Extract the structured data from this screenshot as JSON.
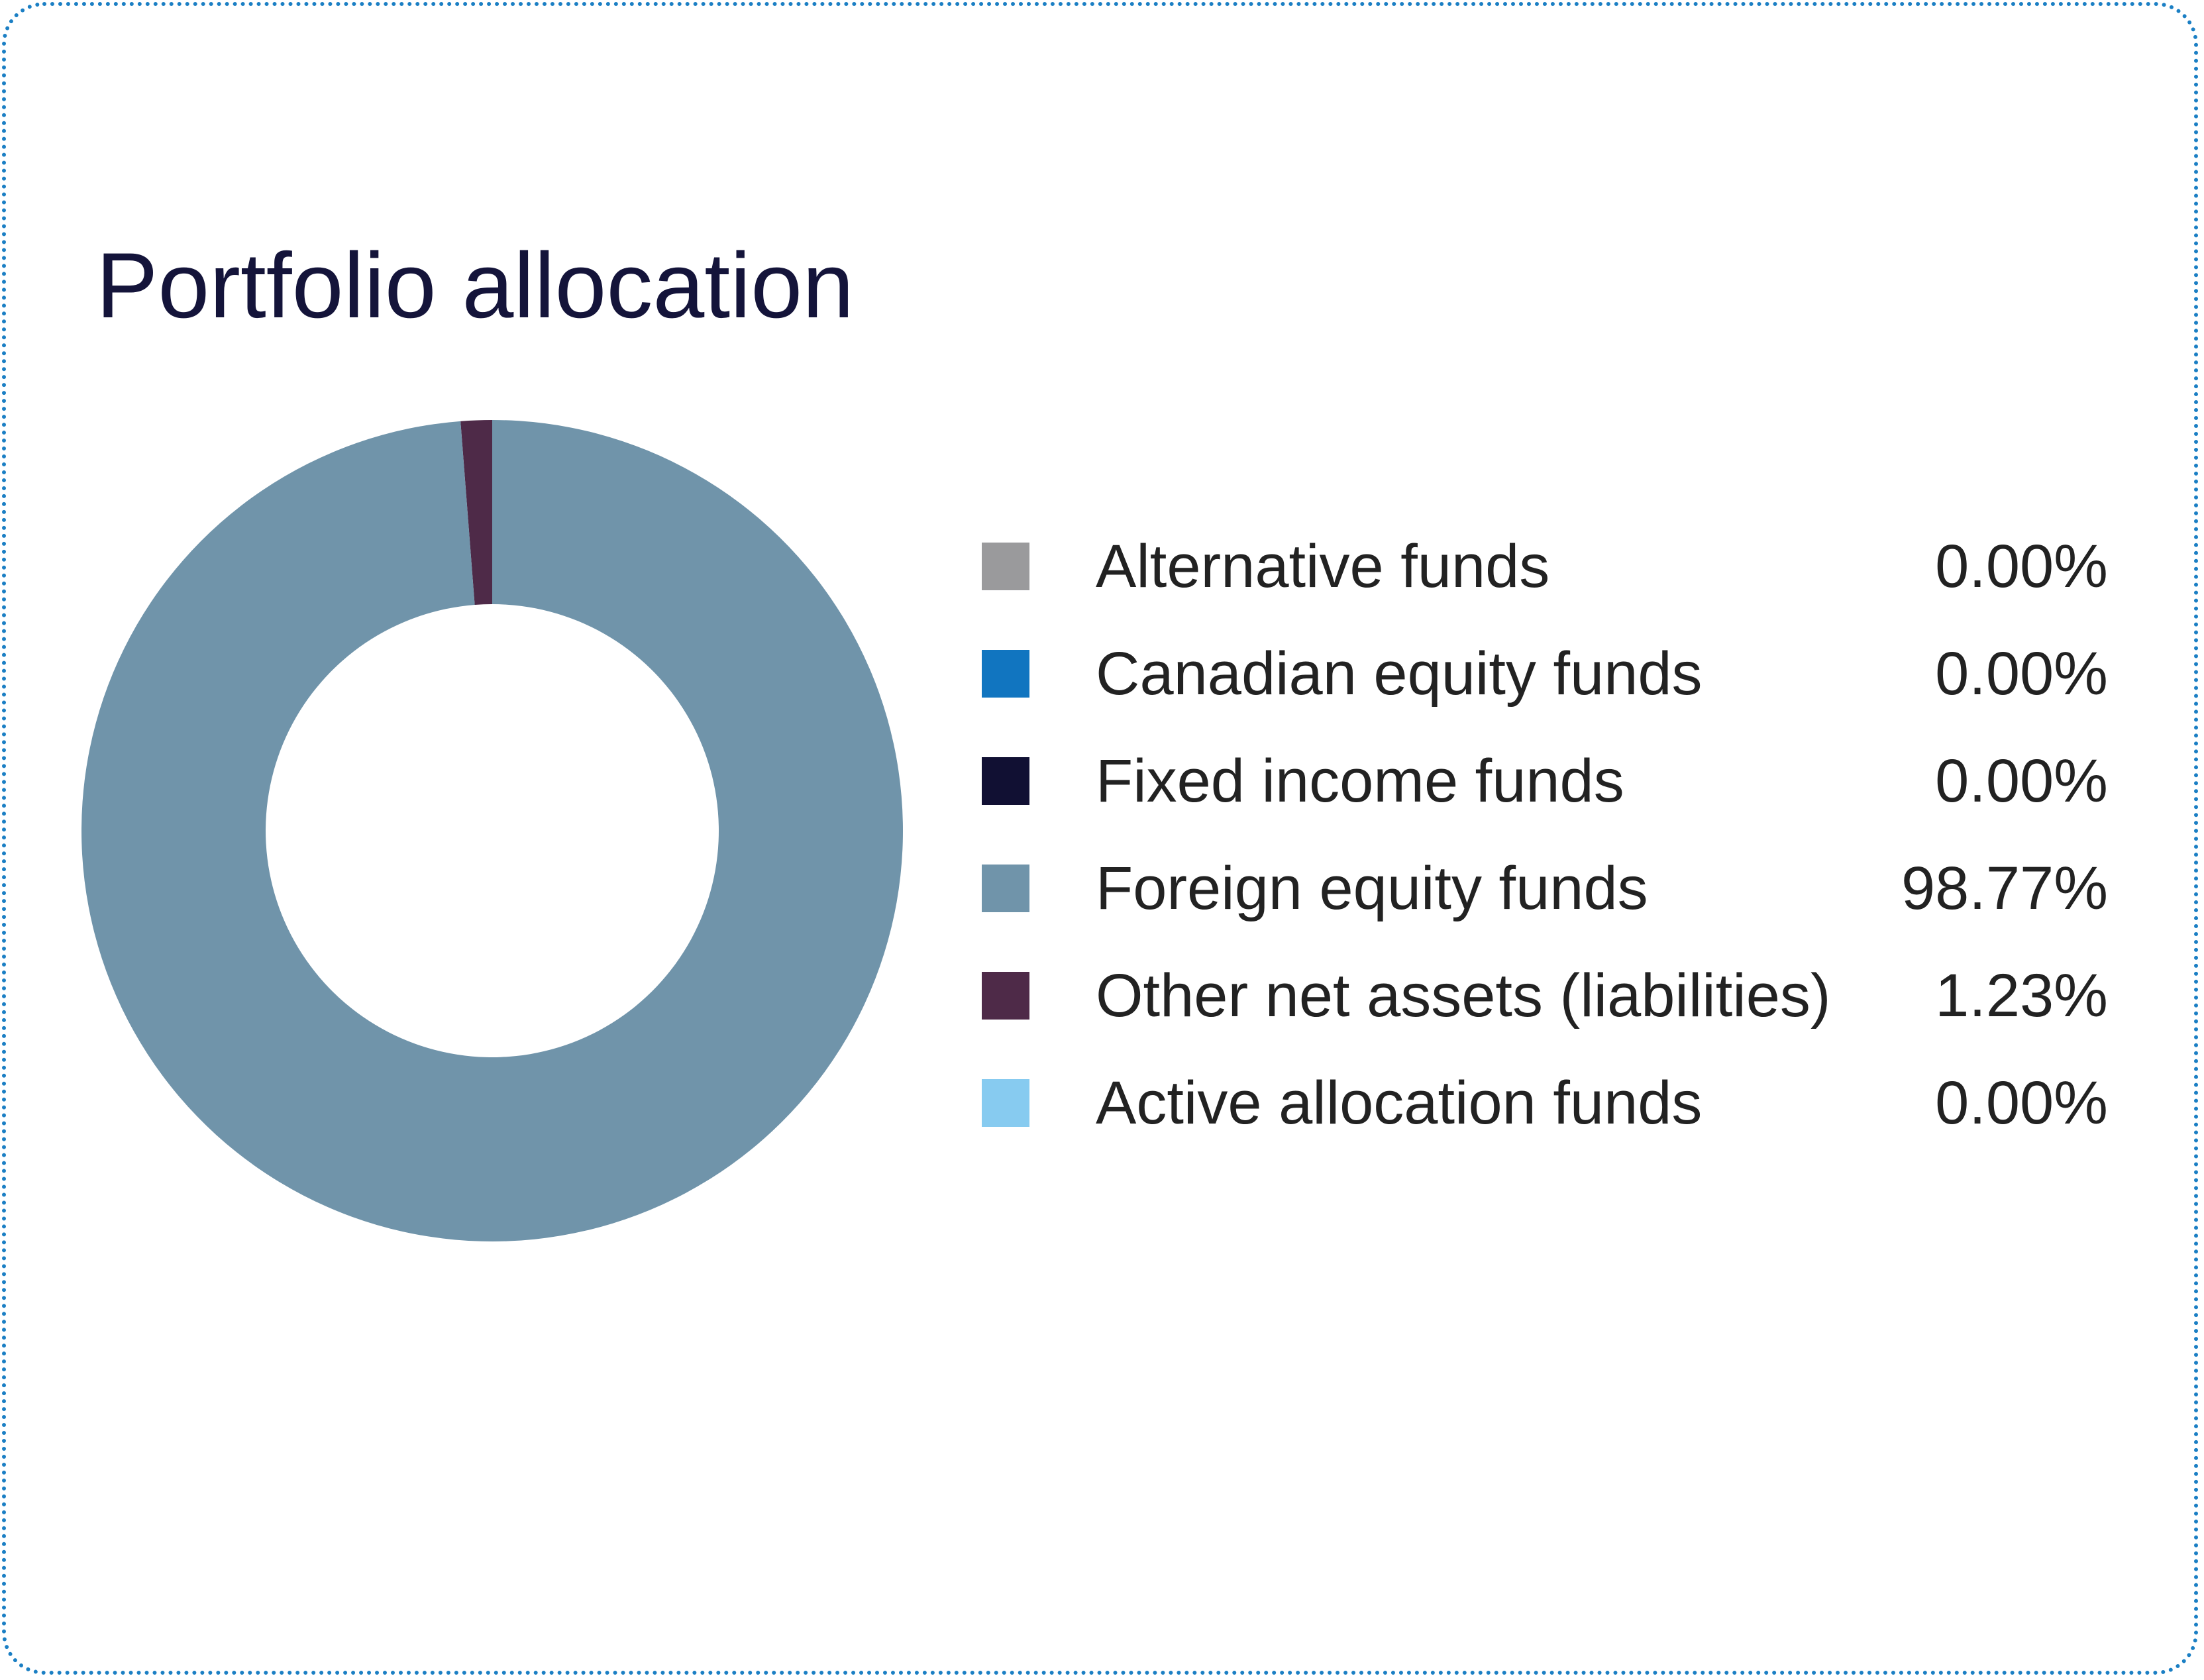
{
  "chart_data": {
    "type": "pie",
    "title": "Portfolio allocation",
    "categories": [
      "Alternative funds",
      "Canadian equity funds",
      "Fixed income funds",
      "Foreign equity funds",
      "Other net assets (liabilities)",
      "Active allocation funds"
    ],
    "values": [
      0.0,
      0.0,
      0.0,
      98.77,
      1.23,
      0.0
    ],
    "value_labels": [
      "0.00%",
      "0.00%",
      "0.00%",
      "98.77%",
      "1.23%",
      "0.00%"
    ],
    "colors": [
      "#9a9a9c",
      "#1175c0",
      "#111033",
      "#7094aa",
      "#4e2a48",
      "#87cbf0"
    ],
    "donut": true,
    "legend": "right"
  }
}
